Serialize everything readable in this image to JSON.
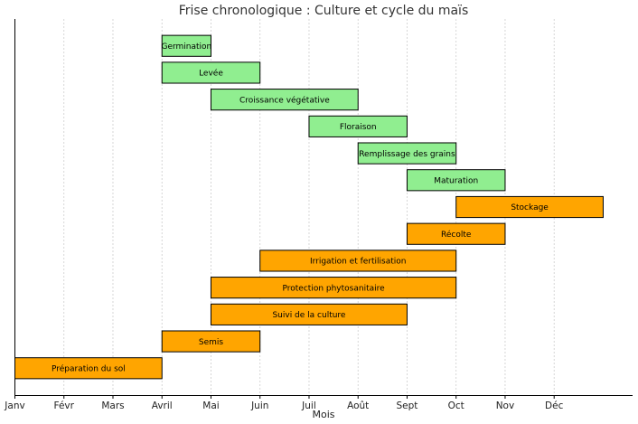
{
  "chart_data": {
    "type": "gantt",
    "title": "Frise chronologique : Culture et cycle du maïs",
    "xlabel": "Mois",
    "ylabel": "",
    "month_labels": [
      "Janv",
      "Févr",
      "Mars",
      "Avril",
      "Mai",
      "Juin",
      "Juil",
      "Août",
      "Sept",
      "Oct",
      "Nov",
      "Déc"
    ],
    "xlim": [
      0,
      12.6
    ],
    "grid": true,
    "colors": {
      "agricultural": "#FFA500",
      "biological": "#90EE90"
    },
    "tasks": [
      {
        "label": "Préparation du sol",
        "start": 0,
        "end": 3,
        "group": "agricultural"
      },
      {
        "label": "Semis",
        "start": 3,
        "end": 5,
        "group": "agricultural"
      },
      {
        "label": "Suivi de la culture",
        "start": 4,
        "end": 8,
        "group": "agricultural"
      },
      {
        "label": "Protection phytosanitaire",
        "start": 4,
        "end": 9,
        "group": "agricultural"
      },
      {
        "label": "Irrigation et fertilisation",
        "start": 5,
        "end": 9,
        "group": "agricultural"
      },
      {
        "label": "Récolte",
        "start": 8,
        "end": 10,
        "group": "agricultural"
      },
      {
        "label": "Stockage",
        "start": 9,
        "end": 12,
        "group": "agricultural"
      },
      {
        "label": "Maturation",
        "start": 8,
        "end": 10,
        "group": "biological"
      },
      {
        "label": "Remplissage des grains",
        "start": 7,
        "end": 9,
        "group": "biological"
      },
      {
        "label": "Floraison",
        "start": 6,
        "end": 8,
        "group": "biological"
      },
      {
        "label": "Croissance végétative",
        "start": 4,
        "end": 7,
        "group": "biological"
      },
      {
        "label": "Levée",
        "start": 3,
        "end": 5,
        "group": "biological"
      },
      {
        "label": "Germination",
        "start": 3,
        "end": 4,
        "group": "biological"
      }
    ]
  }
}
